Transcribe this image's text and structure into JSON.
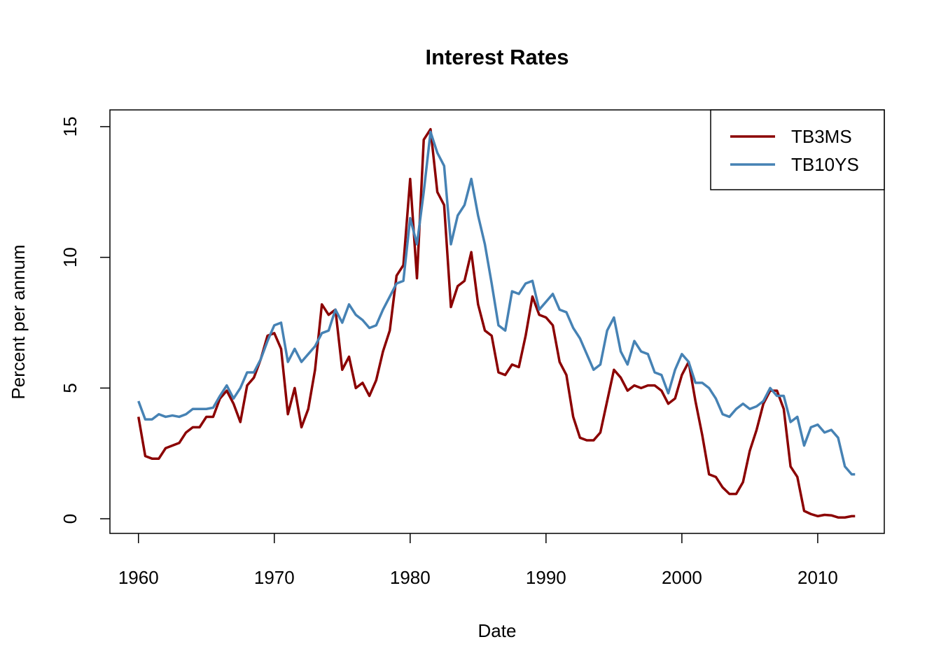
{
  "chart_data": {
    "type": "line",
    "title": "Interest Rates",
    "x_label": "Date",
    "y_label": "Percent per annum",
    "x": [
      1960,
      1960.5,
      1961,
      1961.5,
      1962,
      1962.5,
      1963,
      1963.5,
      1964,
      1964.5,
      1965,
      1965.5,
      1966,
      1966.5,
      1967,
      1967.5,
      1968,
      1968.5,
      1969,
      1969.5,
      1970,
      1970.5,
      1971,
      1971.5,
      1972,
      1972.5,
      1973,
      1973.5,
      1974,
      1974.5,
      1975,
      1975.5,
      1976,
      1976.5,
      1977,
      1977.5,
      1978,
      1978.5,
      1979,
      1979.5,
      1980,
      1980.5,
      1981,
      1981.5,
      1982,
      1982.5,
      1983,
      1983.5,
      1984,
      1984.5,
      1985,
      1985.5,
      1986,
      1986.5,
      1987,
      1987.5,
      1988,
      1988.5,
      1989,
      1989.5,
      1990,
      1990.5,
      1991,
      1991.5,
      1992,
      1992.5,
      1993,
      1993.5,
      1994,
      1994.5,
      1995,
      1995.5,
      1996,
      1996.5,
      1997,
      1997.5,
      1998,
      1998.5,
      1999,
      1999.5,
      2000,
      2000.5,
      2001,
      2001.5,
      2002,
      2002.5,
      2003,
      2003.5,
      2004,
      2004.5,
      2005,
      2005.5,
      2006,
      2006.5,
      2007,
      2007.5,
      2008,
      2008.5,
      2009,
      2009.5,
      2010,
      2010.5,
      2011,
      2011.5,
      2012,
      2012.5,
      2012.75
    ],
    "series": [
      {
        "name": "TB3MS",
        "color": "#8b0000",
        "values": [
          3.9,
          2.4,
          2.3,
          2.3,
          2.7,
          2.8,
          2.9,
          3.3,
          3.5,
          3.5,
          3.9,
          3.9,
          4.6,
          4.9,
          4.4,
          3.7,
          5.1,
          5.4,
          6.1,
          7.0,
          7.1,
          6.5,
          4.0,
          5.0,
          3.5,
          4.2,
          5.7,
          8.2,
          7.8,
          8.0,
          5.7,
          6.2,
          5.0,
          5.2,
          4.7,
          5.3,
          6.4,
          7.2,
          9.3,
          9.7,
          13.0,
          9.2,
          14.5,
          14.9,
          12.5,
          12.0,
          8.1,
          8.9,
          9.1,
          10.2,
          8.2,
          7.2,
          7.0,
          5.6,
          5.5,
          5.9,
          5.8,
          7.0,
          8.5,
          7.8,
          7.7,
          7.4,
          6.0,
          5.5,
          3.9,
          3.1,
          3.0,
          3.0,
          3.3,
          4.5,
          5.7,
          5.4,
          4.9,
          5.1,
          5.0,
          5.1,
          5.1,
          4.9,
          4.4,
          4.6,
          5.5,
          6.0,
          4.5,
          3.2,
          1.7,
          1.6,
          1.2,
          0.95,
          0.95,
          1.4,
          2.6,
          3.4,
          4.4,
          4.9,
          4.9,
          4.2,
          2.0,
          1.6,
          0.3,
          0.18,
          0.1,
          0.15,
          0.13,
          0.05,
          0.05,
          0.1,
          0.1
        ]
      },
      {
        "name": "TB10YS",
        "color": "#4682b4",
        "values": [
          4.5,
          3.8,
          3.8,
          4.0,
          3.9,
          3.95,
          3.9,
          4.0,
          4.2,
          4.2,
          4.2,
          4.25,
          4.7,
          5.1,
          4.6,
          5.0,
          5.6,
          5.6,
          6.1,
          6.8,
          7.4,
          7.5,
          6.0,
          6.5,
          6.0,
          6.3,
          6.6,
          7.1,
          7.2,
          8.0,
          7.5,
          8.2,
          7.8,
          7.6,
          7.3,
          7.4,
          8.0,
          8.5,
          9.0,
          9.1,
          11.5,
          10.5,
          12.5,
          14.8,
          14.0,
          13.5,
          10.5,
          11.6,
          12.0,
          13.0,
          11.6,
          10.5,
          9.0,
          7.4,
          7.2,
          8.7,
          8.6,
          9.0,
          9.1,
          8.0,
          8.3,
          8.6,
          8.0,
          7.9,
          7.3,
          6.9,
          6.3,
          5.7,
          5.9,
          7.2,
          7.7,
          6.4,
          5.9,
          6.8,
          6.4,
          6.3,
          5.6,
          5.5,
          4.8,
          5.7,
          6.3,
          6.0,
          5.2,
          5.2,
          5.0,
          4.6,
          4.0,
          3.9,
          4.2,
          4.4,
          4.2,
          4.3,
          4.5,
          5.0,
          4.7,
          4.7,
          3.7,
          3.9,
          2.8,
          3.5,
          3.6,
          3.3,
          3.4,
          3.1,
          2.0,
          1.7,
          1.7
        ]
      }
    ],
    "xlim": [
      1957.9,
      2014.9
    ],
    "ylim": [
      -0.56,
      15.64
    ],
    "xticks": [
      1960,
      1970,
      1980,
      1990,
      2000,
      2010
    ],
    "yticks": [
      0,
      5,
      10,
      15
    ],
    "legend": "top-right"
  }
}
